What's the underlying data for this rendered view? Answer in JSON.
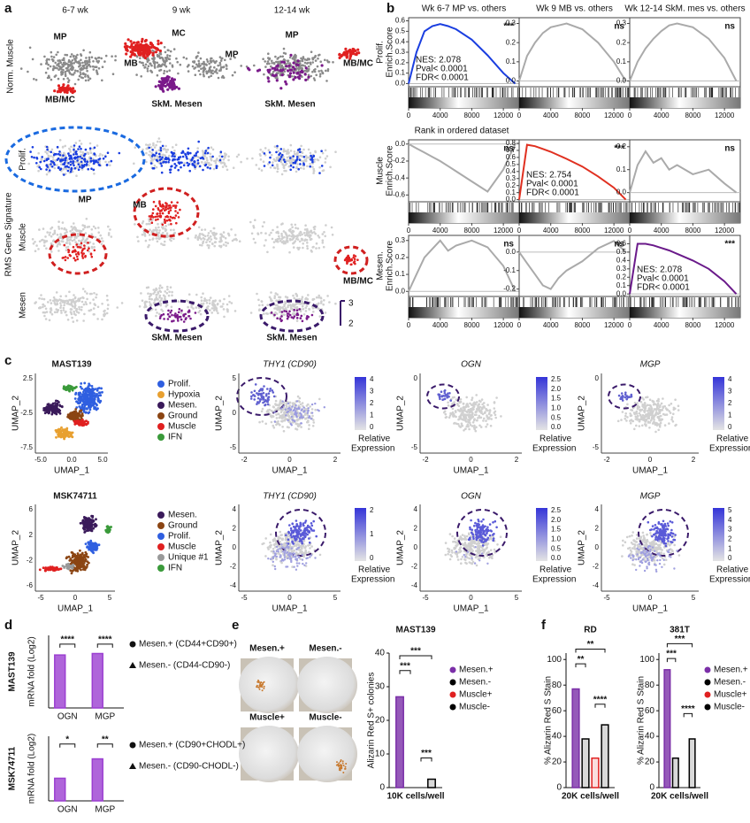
{
  "panel_a": {
    "label": "a",
    "columns": [
      "6-7 wk",
      "9 wk",
      "12-14 wk"
    ],
    "group_label": "RMS Gene Signature",
    "rows": [
      "Norm. Muscle",
      "Prolif.",
      "Muscle",
      "Mesen"
    ],
    "annotations": [
      "MP",
      "MB/MC",
      "MC",
      "MB",
      "MP",
      "SkM. Mesen",
      "MP",
      "MB/MC",
      "SkM. Mesen",
      "MP",
      "MB",
      "MB/MC",
      "SkM. Mesen",
      "SkM. Mesen"
    ],
    "scale": [
      "3",
      "2"
    ]
  },
  "panel_b": {
    "label": "b",
    "x_label": "Rank in ordered dataset"
  },
  "panel_c": {
    "label": "c",
    "rows": [
      {
        "cluster": {
          "title": "MAST139",
          "x_label": "UMAP_1",
          "y_label": "UMAP_2",
          "xticks": [
            "-5.0",
            "0.0",
            "5.0"
          ],
          "yticks": [
            "2.5",
            "-2.5",
            "-7.5"
          ],
          "legend": [
            {
              "name": "Prolif.",
              "color": "#2f5fe0"
            },
            {
              "name": "Hypoxia",
              "color": "#e8a030"
            },
            {
              "name": "Mesen.",
              "color": "#3a1a5a"
            },
            {
              "name": "Ground",
              "color": "#8b4513"
            },
            {
              "name": "Muscle",
              "color": "#e02020"
            },
            {
              "name": "IFN",
              "color": "#3a9a3a"
            }
          ]
        },
        "expression": [
          {
            "title": "THY1 (CD90)",
            "x_label": "UMAP_1",
            "y_label": "UMAP_2",
            "xticks": [
              "-2",
              "0",
              "2"
            ],
            "yticks": [
              "5",
              "0",
              "-5"
            ],
            "colorbar_ticks": [
              "4",
              "3",
              "2",
              "1",
              "0"
            ],
            "colorbar_label": [
              "Relative",
              "Expression"
            ]
          },
          {
            "title": "OGN",
            "x_label": "UMAP_1",
            "y_label": "UMAP_2",
            "xticks": [
              "-2",
              "0",
              "2"
            ],
            "yticks": [
              "0",
              "-5"
            ],
            "colorbar_ticks": [
              "2.5",
              "2.0",
              "1.5",
              "1.0",
              "0.5",
              "0.0"
            ],
            "colorbar_label": [
              "Relative",
              "Expression"
            ]
          },
          {
            "title": "MGP",
            "x_label": "UMAP_1",
            "y_label": "UMAP_2",
            "xticks": [
              "-2",
              "0",
              "2"
            ],
            "yticks": [
              "0",
              "-5"
            ],
            "colorbar_ticks": [
              "4",
              "3",
              "2",
              "1",
              "0"
            ],
            "colorbar_label": [
              "Relative",
              "Expression"
            ]
          }
        ]
      },
      {
        "cluster": {
          "title": "MSK74711",
          "x_label": "UMAP_1",
          "y_label": "UMAP_2",
          "xticks": [
            "-5",
            "0",
            "5"
          ],
          "yticks": [
            "6",
            "2",
            "-2",
            "-6"
          ],
          "legend": [
            {
              "name": "Mesen.",
              "color": "#3a1a5a"
            },
            {
              "name": "Ground",
              "color": "#8b4513"
            },
            {
              "name": "Prolif.",
              "color": "#2f5fe0"
            },
            {
              "name": "Muscle",
              "color": "#e02020"
            },
            {
              "name": "Unique #1",
              "color": "#999999"
            },
            {
              "name": "IFN",
              "color": "#3a9a3a"
            }
          ]
        },
        "expression": [
          {
            "title": "THY1 (CD90)",
            "x_label": "UMAP_1",
            "y_label": "UMAP_2",
            "xticks": [
              "-5",
              "0",
              "5"
            ],
            "yticks": [
              "4",
              "2",
              "0",
              "-2",
              "-4"
            ],
            "colorbar_ticks": [
              "2",
              "1",
              "0"
            ],
            "colorbar_label": [
              "Relative",
              "Expression"
            ]
          },
          {
            "title": "OGN",
            "x_label": "UMAP_1",
            "y_label": "UMAP_2",
            "xticks": [
              "-5",
              "0",
              "5"
            ],
            "yticks": [
              "4",
              "2",
              "0",
              "-2",
              "-4"
            ],
            "colorbar_ticks": [
              "2.5",
              "2.0",
              "1.5",
              "1.0",
              "0.5",
              "0.0"
            ],
            "colorbar_label": [
              "Relative",
              "Expression"
            ]
          },
          {
            "title": "MGP",
            "x_label": "UMAP_1",
            "y_label": "UMAP_2",
            "xticks": [
              "-5",
              "0",
              "5"
            ],
            "yticks": [
              "4",
              "2",
              "0",
              "-2",
              "-4"
            ],
            "colorbar_ticks": [
              "5",
              "4",
              "3",
              "2",
              "1",
              "0"
            ],
            "colorbar_label": [
              "Relative",
              "Expression"
            ]
          }
        ]
      }
    ]
  },
  "panel_d": {
    "label": "d"
  },
  "panel_e": {
    "label": "e",
    "title": "MAST139",
    "photos": [
      "Mesen.+",
      "Mesen.-",
      "Muscle+",
      "Muscle-"
    ],
    "photo_colors": [
      "#6a1a8a",
      "#222222",
      "#e02020",
      "#222222"
    ]
  },
  "panel_f": {
    "label": "f"
  },
  "chart_data": [
    {
      "type": "line",
      "title": "Wk 6-7 MP vs. others",
      "y_label": [
        "Prolif.",
        "Enrich.Score"
      ],
      "x": [
        0,
        1000,
        2000,
        3000,
        4000,
        5000,
        6000,
        8000,
        10000,
        12000,
        13500
      ],
      "series": [
        {
          "color": "#1a3ee0",
          "values": [
            0,
            0.3,
            0.5,
            0.55,
            0.57,
            0.55,
            0.52,
            0.42,
            0.27,
            0.1,
            0
          ]
        }
      ],
      "xlim": [
        0,
        14000
      ],
      "xticks": [
        0,
        4000,
        8000,
        12000
      ],
      "ylim": [
        -0.03,
        0.63
      ],
      "yticks": [
        {
          "value": 0,
          "label": "0.0"
        },
        0.1,
        0.2,
        0.3,
        0.4,
        0.5,
        0.6
      ],
      "annotations": [
        "NES: 2.078",
        "Pval< 0.0001",
        "FDR< 0.0001"
      ],
      "significance": "***"
    },
    {
      "type": "line",
      "title": "Wk 9 MB vs. others",
      "x": [
        0,
        1000,
        2000,
        3000,
        4000,
        5000,
        6000,
        8000,
        10000,
        12000,
        13500
      ],
      "series": [
        {
          "color": "#aaaaaa",
          "values": [
            0,
            0.13,
            0.2,
            0.25,
            0.28,
            0.29,
            0.3,
            0.27,
            0.2,
            0.1,
            0
          ]
        }
      ],
      "xlim": [
        0,
        14000
      ],
      "xticks": [
        0,
        4000,
        8000,
        12000
      ],
      "ylim": [
        -0.03,
        0.33
      ],
      "yticks": [
        {
          "value": 0,
          "label": "0.0"
        },
        0.1,
        0.2,
        0.3
      ],
      "significance": "ns"
    },
    {
      "type": "line",
      "title": "Wk 12-14 SkM. mes vs. others",
      "x": [
        0,
        1000,
        2000,
        3000,
        4000,
        5000,
        6000,
        8000,
        10000,
        12000,
        13500
      ],
      "series": [
        {
          "color": "#aaaaaa",
          "values": [
            0,
            0.1,
            0.17,
            0.22,
            0.26,
            0.29,
            0.3,
            0.28,
            0.22,
            0.12,
            0
          ]
        }
      ],
      "xlim": [
        0,
        14000
      ],
      "xticks": [
        0,
        4000,
        8000,
        12000
      ],
      "ylim": [
        -0.03,
        0.33
      ],
      "yticks": [
        {
          "value": 0,
          "label": "0.0"
        },
        0.1,
        0.2,
        0.3
      ],
      "significance": "ns"
    },
    {
      "type": "line",
      "y_label": [
        "Muscle",
        "Enrich.Score"
      ],
      "x": [
        0,
        1000,
        2000,
        3000,
        4000,
        5000,
        6000,
        8000,
        10000,
        12000,
        13500
      ],
      "series": [
        {
          "color": "#aaaaaa",
          "values": [
            0,
            -0.05,
            -0.1,
            -0.15,
            -0.2,
            -0.26,
            -0.32,
            -0.44,
            -0.56,
            -0.3,
            0
          ]
        }
      ],
      "xlim": [
        0,
        14000
      ],
      "xticks": [
        0,
        4000,
        8000,
        12000
      ],
      "ylim": [
        -0.68,
        0.05
      ],
      "yticks": [
        {
          "value": 0,
          "label": "0.0"
        },
        -0.2,
        -0.4,
        -0.6
      ],
      "significance": "ns"
    },
    {
      "type": "line",
      "x": [
        0,
        1000,
        2000,
        3000,
        4000,
        5000,
        6000,
        8000,
        10000,
        12000,
        13500
      ],
      "series": [
        {
          "color": "#e03020",
          "values": [
            0,
            0.78,
            0.76,
            0.72,
            0.68,
            0.63,
            0.58,
            0.47,
            0.33,
            0.17,
            0
          ]
        }
      ],
      "xlim": [
        0,
        14000
      ],
      "xticks": [
        0,
        4000,
        8000,
        12000
      ],
      "ylim": [
        -0.03,
        0.85
      ],
      "yticks": [
        {
          "value": 0,
          "label": "0.0"
        },
        0.1,
        0.2,
        0.3,
        0.4,
        0.5,
        0.6,
        0.7,
        0.8
      ],
      "annotations": [
        "NES: 2.754",
        "Pval< 0.0001",
        "FDR< 0.0001"
      ],
      "significance": "***"
    },
    {
      "type": "line",
      "x": [
        0,
        1000,
        2000,
        3000,
        4000,
        5000,
        6000,
        8000,
        10000,
        12000,
        13500
      ],
      "series": [
        {
          "color": "#aaaaaa",
          "values": [
            0,
            0.12,
            0.18,
            0.13,
            0.15,
            0.1,
            0.12,
            0.08,
            0.1,
            0.04,
            0
          ]
        }
      ],
      "xlim": [
        0,
        14000
      ],
      "xticks": [
        0,
        4000,
        8000,
        12000
      ],
      "ylim": [
        -0.04,
        0.23
      ],
      "yticks": [
        {
          "value": 0,
          "label": "0.0"
        },
        0.1,
        0.2
      ],
      "significance": "ns"
    },
    {
      "type": "line",
      "y_label": [
        "Mesen.",
        "Enrich.Score"
      ],
      "x": [
        0,
        1000,
        2000,
        3000,
        4000,
        5000,
        6000,
        8000,
        10000,
        12000,
        13500
      ],
      "series": [
        {
          "color": "#aaaaaa",
          "values": [
            0,
            0.1,
            0.2,
            0.25,
            0.3,
            0.24,
            0.27,
            0.3,
            0.26,
            0.15,
            0
          ]
        }
      ],
      "xlim": [
        0,
        14000
      ],
      "xticks": [
        0,
        4000,
        8000,
        12000
      ],
      "ylim": [
        -0.03,
        0.33
      ],
      "yticks": [
        {
          "value": 0,
          "label": "0.0"
        },
        0.1,
        0.2,
        0.3
      ],
      "significance": "ns"
    },
    {
      "type": "line",
      "x": [
        0,
        1000,
        2000,
        3000,
        4000,
        5000,
        6000,
        8000,
        10000,
        12000,
        13500
      ],
      "series": [
        {
          "color": "#aaaaaa",
          "values": [
            0,
            -0.06,
            -0.12,
            -0.18,
            -0.2,
            -0.14,
            -0.1,
            -0.05,
            0.02,
            0.06,
            0
          ]
        }
      ],
      "xlim": [
        0,
        14000
      ],
      "xticks": [
        0,
        4000,
        8000,
        12000
      ],
      "ylim": [
        -0.24,
        0.09
      ],
      "yticks": [
        {
          "value": 0,
          "label": "0.0"
        },
        -0.1,
        -0.2
      ],
      "significance": "ns"
    },
    {
      "type": "line",
      "x": [
        0,
        1000,
        2000,
        3000,
        4000,
        5000,
        6000,
        8000,
        10000,
        12000,
        13500
      ],
      "series": [
        {
          "color": "#6a1a8a",
          "values": [
            0,
            0.6,
            0.6,
            0.58,
            0.55,
            0.52,
            0.48,
            0.4,
            0.3,
            0.15,
            0
          ]
        }
      ],
      "xlim": [
        0,
        14000
      ],
      "xticks": [
        0,
        4000,
        8000,
        12000
      ],
      "ylim": [
        -0.03,
        0.7
      ],
      "yticks": [
        {
          "value": 0,
          "label": "0.0"
        },
        0.1,
        0.2,
        0.3,
        0.4,
        0.5,
        0.6
      ],
      "annotations": [
        "NES: 2.078",
        "Pval< 0.0001",
        "FDR< 0.0001"
      ],
      "significance": "***"
    },
    {
      "type": "bar",
      "title": "MAST139",
      "y_label": "mRNA fold (Log2)",
      "categories": [
        "OGN",
        "MGP"
      ],
      "series": [
        {
          "name": "Mesen.+ (CD44+CD90+)",
          "color": "#9b3fd1",
          "marker": "circle",
          "values": [
            7.3,
            7.5
          ]
        },
        {
          "name": "Mesen.- (CD44-CD90-)",
          "color": "#000000",
          "marker": "triangle",
          "values": [
            0,
            0
          ]
        }
      ],
      "ylim": [
        0,
        10
      ],
      "annotations": [
        "****",
        "****"
      ]
    },
    {
      "type": "bar",
      "title": "MSK74711",
      "y_label": "mRNA fold (Log2)",
      "categories": [
        "OGN",
        "MGP"
      ],
      "series": [
        {
          "name": "Mesen.+ (CD90+CHODL+)",
          "color": "#9b3fd1",
          "marker": "circle",
          "values": [
            3.5,
            6.5
          ]
        },
        {
          "name": "Mesen.- (CD90-CHODL-)",
          "color": "#000000",
          "marker": "triangle",
          "values": [
            0,
            0
          ]
        }
      ],
      "ylim": [
        0,
        10
      ],
      "annotations": [
        "*",
        "**"
      ]
    },
    {
      "type": "bar",
      "y_label": "Alizarin Red S+ colonies",
      "categories": [
        "10K cells/well"
      ],
      "series": [
        {
          "name": "Mesen.+",
          "color": "#7b2fa8",
          "values": [
            27
          ]
        },
        {
          "name": "Mesen.-",
          "color": "#000000",
          "values": [
            0
          ]
        },
        {
          "name": "Muscle+",
          "color": "#e02020",
          "values": [
            0
          ]
        },
        {
          "name": "Muscle-",
          "color": "#000000",
          "values": [
            2.5
          ]
        }
      ],
      "ylim": [
        0,
        40
      ],
      "yticks": [
        0,
        10,
        20,
        30,
        40
      ],
      "annotations": [
        "***",
        "***",
        "***"
      ]
    },
    {
      "type": "bar",
      "title": "RD",
      "y_label": "% Alizarin Red S Stain",
      "categories": [
        "20K cells/well"
      ],
      "series": [
        {
          "color": "#7b2fa8",
          "values": [
            77
          ]
        },
        {
          "color": "#000000",
          "values": [
            38
          ]
        },
        {
          "color": "#e02020",
          "values": [
            23
          ]
        },
        {
          "color": "#000000",
          "values": [
            49
          ]
        }
      ],
      "ylim": [
        0,
        105
      ],
      "yticks": [
        0,
        20,
        40,
        60,
        80,
        100
      ],
      "annotations": [
        "**",
        "**",
        "****"
      ]
    },
    {
      "type": "bar",
      "title": "381T",
      "y_label": "% Alizarin Red S Stain",
      "categories": [
        "20K cells/well"
      ],
      "series": [
        {
          "name": "Mesen.+",
          "color": "#7b2fa8",
          "values": [
            92
          ]
        },
        {
          "name": "Mesen.-",
          "color": "#000000",
          "values": [
            23
          ]
        },
        {
          "name": "Muscle+",
          "color": "#e02020",
          "values": [
            0
          ]
        },
        {
          "name": "Muscle-",
          "color": "#000000",
          "values": [
            38
          ]
        }
      ],
      "ylim": [
        0,
        105
      ],
      "yticks": [
        0,
        20,
        40,
        60,
        80,
        100
      ],
      "annotations": [
        "***",
        "***",
        "****"
      ]
    }
  ]
}
